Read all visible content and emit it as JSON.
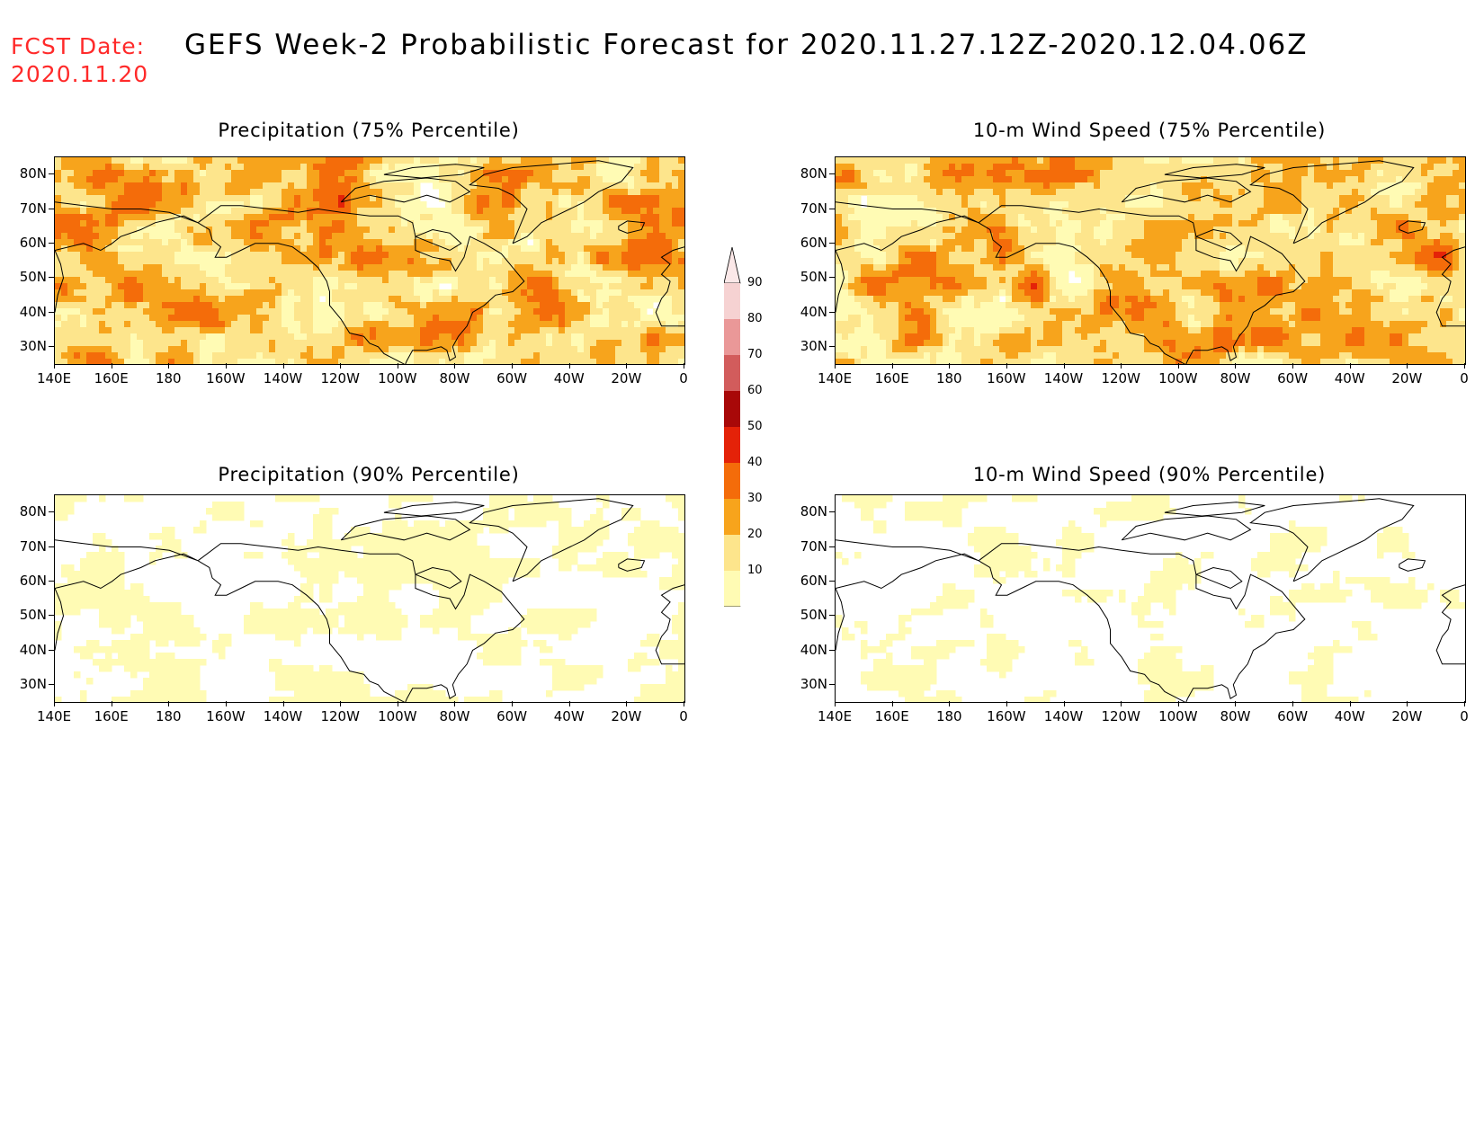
{
  "header": {
    "fcst_label": "FCST Date:",
    "fcst_date": "2020.11.20",
    "title": "GEFS Week-2 Probabilistic Forecast for 2020.11.27.12Z-2020.12.04.06Z"
  },
  "axes": {
    "lat_labels": [
      "80N",
      "70N",
      "60N",
      "50N",
      "40N",
      "30N"
    ],
    "lat_values": [
      80,
      70,
      60,
      50,
      40,
      30
    ],
    "lon_labels": [
      "140E",
      "160E",
      "180",
      "160W",
      "140W",
      "120W",
      "100W",
      "80W",
      "60W",
      "40W",
      "20W",
      "0"
    ],
    "lon_range": [
      140,
      360
    ],
    "lat_range": [
      25,
      85
    ]
  },
  "colors": {
    "levels": [
      {
        "value": 10,
        "color": "#fffbb4"
      },
      {
        "value": 20,
        "color": "#fde58c"
      },
      {
        "value": 30,
        "color": "#f7a41c"
      },
      {
        "value": 40,
        "color": "#f46c0a"
      },
      {
        "value": 50,
        "color": "#e42208"
      },
      {
        "value": 60,
        "color": "#a80808"
      },
      {
        "value": 70,
        "color": "#d25c5c"
      },
      {
        "value": 80,
        "color": "#ea9898"
      },
      {
        "value": 90,
        "color": "#f6d2d2"
      }
    ]
  },
  "colorbar": {
    "labels": [
      "90",
      "80",
      "70",
      "60",
      "50",
      "40",
      "30",
      "20",
      "10"
    ]
  },
  "panels": [
    {
      "id": "precip75",
      "title": "Precipitation (75% Percentile)",
      "intensity": 2.2
    },
    {
      "id": "wind75",
      "title": "10-m Wind Speed (75% Percentile)",
      "intensity": 2.0
    },
    {
      "id": "precip90",
      "title": "Precipitation (90% Percentile)",
      "intensity": 0.7
    },
    {
      "id": "wind90",
      "title": "10-m Wind Speed (90% Percentile)",
      "intensity": 0.6
    }
  ]
}
